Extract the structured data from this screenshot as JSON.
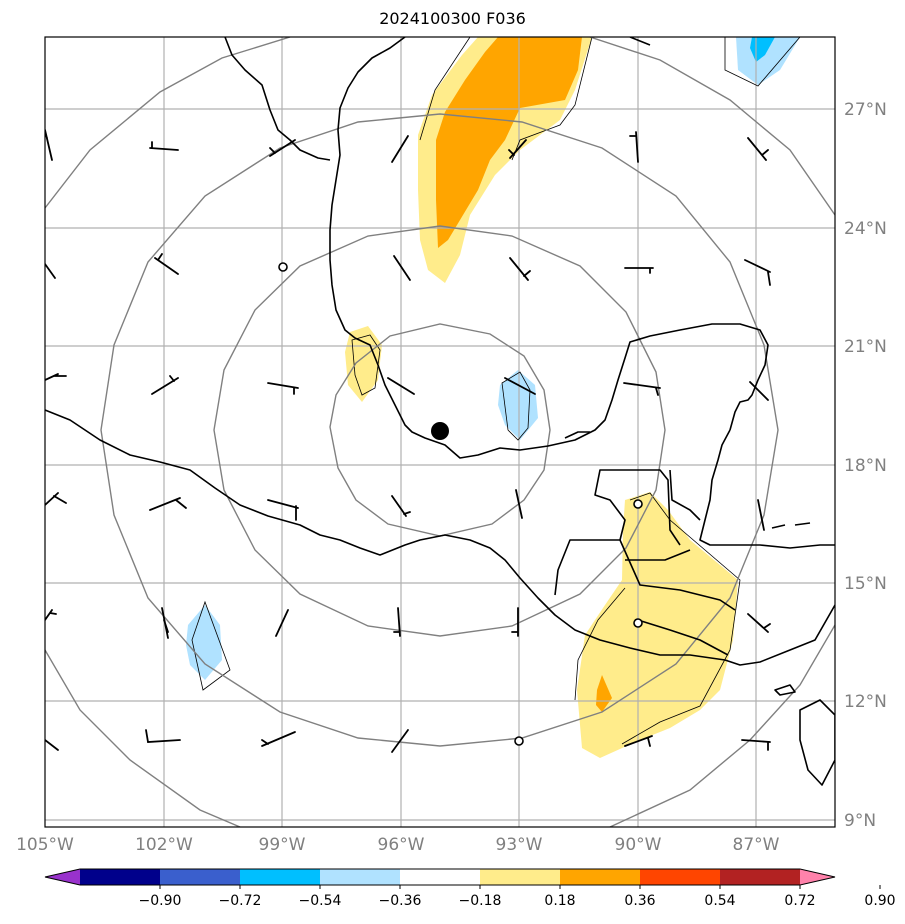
{
  "title": "2024100300 F036",
  "map": {
    "projection": "lat-lon",
    "lon_range": [
      -105,
      -85
    ],
    "lat_range": [
      9,
      29
    ],
    "lat_ticks": [
      {
        "value": 27,
        "label": "27°N"
      },
      {
        "value": 24,
        "label": "24°N"
      },
      {
        "value": 21,
        "label": "21°N"
      },
      {
        "value": 18,
        "label": "18°N"
      },
      {
        "value": 15,
        "label": "15°N"
      },
      {
        "value": 12,
        "label": "12°N"
      },
      {
        "value": 9,
        "label": "9°N"
      }
    ],
    "lon_ticks": [
      {
        "value": -105,
        "label": "105°W"
      },
      {
        "value": -102,
        "label": "102°W"
      },
      {
        "value": -99,
        "label": "99°W"
      },
      {
        "value": -96,
        "label": "96°W"
      },
      {
        "value": -93,
        "label": "93°W"
      },
      {
        "value": -90,
        "label": "90°W"
      },
      {
        "value": -87,
        "label": "87°W"
      }
    ],
    "grid": true,
    "storm_center": {
      "lon": -95.0,
      "lat": 18.8
    },
    "range_rings": "concentric, centered on storm",
    "wind_barbs": "shown on 3-degree grid",
    "calm_points": [
      {
        "lon": -99.0,
        "lat": 23.0
      },
      {
        "lon": -90.0,
        "lat": 17.0
      },
      {
        "lon": -90.0,
        "lat": 14.0
      },
      {
        "lon": -93.0,
        "lat": 11.0
      }
    ]
  },
  "colorbar": {
    "colors": [
      "#9932cc",
      "#00008b",
      "#3a5fcd",
      "#00bfff",
      "#b0e2ff",
      "#ffffff",
      "#ffec8b",
      "#ffa500",
      "#ff4500",
      "#b22222",
      "#ff82ab"
    ],
    "tick_labels": [
      "−0.90",
      "−0.72",
      "−0.54",
      "−0.36",
      "−0.18",
      "0.18",
      "0.36",
      "0.54",
      "0.72",
      "0.90"
    ]
  },
  "shading": {
    "light_yellow": "#ffec8b",
    "orange": "#ffa500",
    "orange_red": "#ff4500",
    "light_blue": "#b0e2ff",
    "deep_sky_blue": "#00bfff"
  }
}
